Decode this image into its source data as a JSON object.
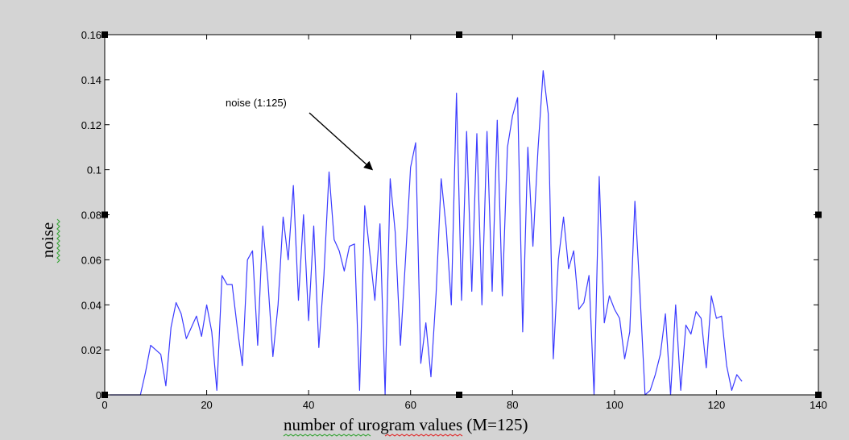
{
  "colors": {
    "figure_background": "#d4d4d4",
    "axes_background": "#ffffff",
    "line": "#3b3bff",
    "axis": "#000000",
    "spellcheck_green": "#3aa53a",
    "spellcheck_red": "#e03030"
  },
  "chart_data": {
    "type": "line",
    "title": "",
    "xlabel": "number of urogram values (M=125)",
    "ylabel": "noise",
    "xlim": [
      0,
      140
    ],
    "ylim": [
      0,
      0.16
    ],
    "grid": false,
    "x_ticks": [
      0,
      20,
      40,
      60,
      80,
      100,
      120,
      140
    ],
    "x_tick_labels": [
      "0",
      "20",
      "40",
      "60",
      "80",
      "100",
      "120",
      "140"
    ],
    "y_ticks": [
      0,
      0.02,
      0.04,
      0.06,
      0.08,
      0.1,
      0.12,
      0.14,
      0.16
    ],
    "y_tick_labels": [
      "0",
      "0.02",
      "0.04",
      "0.06",
      "0.08",
      "0.1",
      "0.12",
      "0.14",
      "0.16"
    ],
    "series": [
      {
        "x": [
          1,
          2,
          3,
          4,
          5,
          6,
          7,
          8,
          9,
          10,
          11,
          12,
          13,
          14,
          15,
          16,
          17,
          18,
          19,
          20,
          21,
          22,
          23,
          24,
          25,
          26,
          27,
          28,
          29,
          30,
          31,
          32,
          33,
          34,
          35,
          36,
          37,
          38,
          39,
          40,
          41,
          42,
          43,
          44,
          45,
          46,
          47,
          48,
          49,
          50,
          51,
          52,
          53,
          54,
          55,
          56,
          57,
          58,
          59,
          60,
          61,
          62,
          63,
          64,
          65,
          66,
          67,
          68,
          69,
          70,
          71,
          72,
          73,
          74,
          75,
          76,
          77,
          78,
          79,
          80,
          81,
          82,
          83,
          84,
          85,
          86,
          87,
          88,
          89,
          90,
          91,
          92,
          93,
          94,
          95,
          96,
          97,
          98,
          99,
          100,
          101,
          102,
          103,
          104,
          105,
          106,
          107,
          108,
          109,
          110,
          111,
          112,
          113,
          114,
          115,
          116,
          117,
          118,
          119,
          120,
          121,
          122,
          123,
          124,
          125
        ],
        "y": [
          0.0,
          0.0,
          0.0,
          0.0,
          0.0,
          0.0,
          0.0,
          0.01,
          0.022,
          0.02,
          0.018,
          0.004,
          0.03,
          0.041,
          0.036,
          0.025,
          0.03,
          0.035,
          0.026,
          0.04,
          0.028,
          0.002,
          0.053,
          0.049,
          0.049,
          0.03,
          0.013,
          0.06,
          0.064,
          0.022,
          0.075,
          0.051,
          0.017,
          0.04,
          0.079,
          0.06,
          0.093,
          0.042,
          0.08,
          0.033,
          0.075,
          0.021,
          0.053,
          0.099,
          0.069,
          0.064,
          0.055,
          0.066,
          0.067,
          0.002,
          0.084,
          0.063,
          0.042,
          0.076,
          0.0,
          0.096,
          0.072,
          0.022,
          0.06,
          0.101,
          0.112,
          0.014,
          0.032,
          0.008,
          0.045,
          0.096,
          0.074,
          0.04,
          0.134,
          0.042,
          0.117,
          0.046,
          0.116,
          0.04,
          0.117,
          0.046,
          0.122,
          0.044,
          0.11,
          0.124,
          0.132,
          0.028,
          0.11,
          0.066,
          0.109,
          0.144,
          0.125,
          0.016,
          0.06,
          0.079,
          0.056,
          0.064,
          0.038,
          0.041,
          0.053,
          0.0,
          0.097,
          0.032,
          0.044,
          0.038,
          0.034,
          0.016,
          0.028,
          0.086,
          0.045,
          0.0,
          0.002,
          0.009,
          0.018,
          0.036,
          0.0,
          0.04,
          0.002,
          0.031,
          0.027,
          0.037,
          0.034,
          0.012,
          0.044,
          0.034,
          0.035,
          0.013,
          0.002,
          0.009,
          0.006
        ]
      }
    ],
    "annotations": [
      {
        "text": "noise (1:125)",
        "arrow_to": {
          "x": 52.5,
          "y": 0.1
        }
      }
    ]
  }
}
